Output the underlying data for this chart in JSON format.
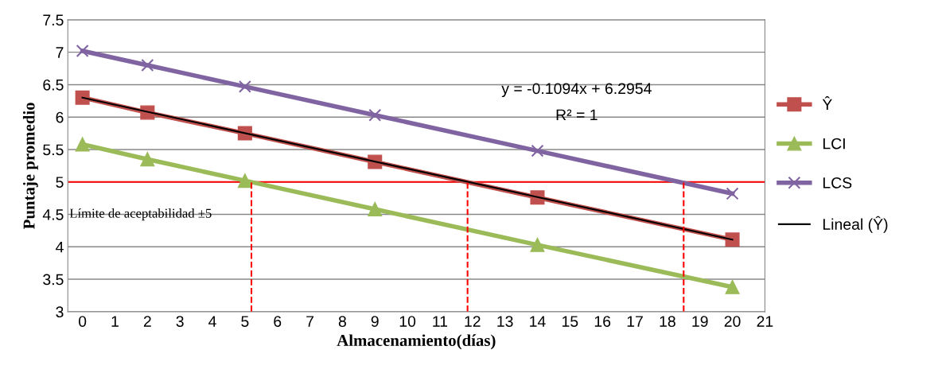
{
  "chart_data": {
    "type": "line",
    "xlabel": "Almacenamiento(días)",
    "ylabel": "Puntaje promedio",
    "x": [
      0,
      2,
      5,
      9,
      14,
      20
    ],
    "series": [
      {
        "name": "Ŷ",
        "color": "#c0504d",
        "marker": "square",
        "values": [
          6.3,
          6.07,
          5.75,
          5.31,
          4.76,
          4.11
        ]
      },
      {
        "name": "LCI",
        "color": "#9bbb59",
        "marker": "triangle",
        "values": [
          5.58,
          5.35,
          5.02,
          4.58,
          4.03,
          3.38
        ]
      },
      {
        "name": "LCS",
        "color": "#8064a2",
        "marker": "cross",
        "values": [
          7.02,
          6.8,
          6.47,
          6.03,
          5.48,
          4.82
        ]
      },
      {
        "name": "Lineal (Ŷ)",
        "color": "#000000",
        "marker": "none",
        "x": [
          0,
          20
        ],
        "values": [
          6.3,
          4.11
        ]
      },
      {
        "color": "#ff0000",
        "marker": "none",
        "line_style": "dashed",
        "x": [
          5.2,
          5.2
        ],
        "values": [
          3,
          5
        ]
      },
      {
        "color": "#ff0000",
        "marker": "none",
        "line_style": "dashed",
        "x": [
          11.85,
          11.85
        ],
        "values": [
          3,
          5
        ]
      },
      {
        "color": "#ff0000",
        "marker": "none",
        "line_style": "dashed",
        "x": [
          18.5,
          18.5
        ],
        "values": [
          3,
          5
        ]
      }
    ],
    "ref_lines": [
      {
        "axis": "y",
        "value": 5,
        "label": "Límite de aceptabilidad ±5",
        "color": "#ff0000"
      }
    ],
    "annotations": [
      "y = -0.1094x + 6.2954",
      "R² = 1"
    ],
    "xlim": [
      -0.45,
      21
    ],
    "xticks": [
      0,
      1,
      2,
      3,
      4,
      5,
      6,
      7,
      8,
      9,
      10,
      11,
      12,
      13,
      14,
      15,
      16,
      17,
      18,
      19,
      20,
      21
    ],
    "ylim": [
      3,
      7.5
    ],
    "yticks": [
      3,
      3.5,
      4,
      4.5,
      5,
      5.5,
      6,
      6.5,
      7,
      7.5
    ],
    "grid": "y",
    "legend": "right"
  }
}
